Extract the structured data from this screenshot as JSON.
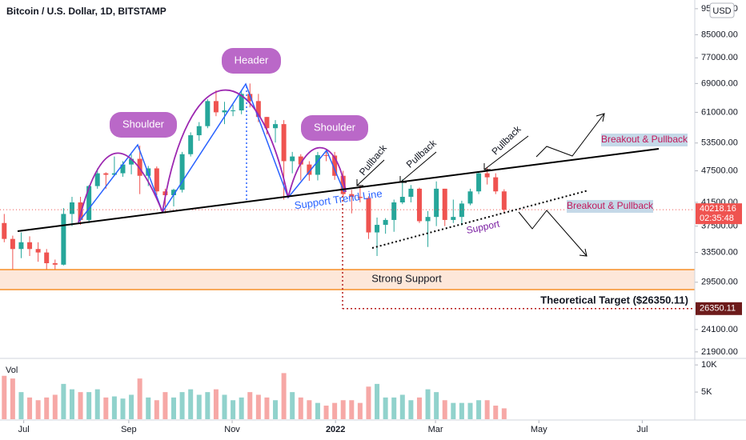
{
  "chart_data": {
    "type": "candlestick",
    "title": "Bitcoin / U.S. Dollar, 1D, BITSTAMP",
    "currency": "USD",
    "volume_label": "Vol",
    "log_scale": true,
    "up_color": "#26a69a",
    "down_color": "#ef5350",
    "open": [
      38000,
      35500,
      34000,
      35000,
      34000,
      33500,
      32000,
      31800,
      39500,
      41500,
      38500,
      44500,
      47000,
      46700,
      47000,
      48800,
      50000,
      46500,
      48000,
      43500,
      42800,
      43800,
      51000,
      55300,
      57500,
      64000,
      61000,
      61500,
      61500,
      66000,
      64000,
      59800,
      57000,
      58000,
      49500,
      50500,
      48800,
      46700,
      50800,
      50700,
      46500,
      43000,
      42500,
      42300,
      36500,
      37700,
      38500,
      41500,
      42500,
      44000,
      38300,
      39000,
      44000,
      38500,
      39000,
      41300,
      43500,
      47000,
      46200,
      43500
    ],
    "high": [
      39500,
      36000,
      36500,
      35900,
      35000,
      34000,
      32500,
      40500,
      42500,
      42500,
      44700,
      48000,
      47200,
      50500,
      49500,
      51000,
      52900,
      48500,
      48400,
      44000,
      44000,
      51500,
      56000,
      58500,
      64500,
      67000,
      63800,
      63000,
      67000,
      69000,
      66000,
      59800,
      59000,
      59000,
      51500,
      51000,
      49500,
      51500,
      52000,
      51500,
      47500,
      43800,
      44500,
      42600,
      38900,
      38800,
      42000,
      45800,
      44700,
      44200,
      40000,
      45400,
      44000,
      42000,
      41800,
      44000,
      47200,
      48200,
      47000,
      43900
    ],
    "low": [
      35000,
      29000,
      32700,
      33000,
      32200,
      31000,
      29300,
      31700,
      37500,
      37700,
      38000,
      44000,
      44000,
      46500,
      46300,
      46800,
      43000,
      44500,
      42800,
      39600,
      40800,
      43300,
      50500,
      54000,
      57000,
      60000,
      58000,
      60000,
      60500,
      62300,
      58500,
      55500,
      53600,
      42000,
      47000,
      45600,
      45500,
      45600,
      49500,
      45700,
      42500,
      39600,
      41500,
      35500,
      33000,
      36300,
      36600,
      41200,
      41500,
      38000,
      34300,
      37500,
      37500,
      38000,
      37600,
      41000,
      43000,
      44800,
      43000,
      39600
    ],
    "close": [
      35500,
      34000,
      35000,
      34000,
      33500,
      32000,
      31800,
      39500,
      41500,
      38500,
      44500,
      47000,
      46700,
      47000,
      48800,
      50000,
      46500,
      48000,
      43500,
      42800,
      43800,
      51000,
      55300,
      57500,
      64000,
      61000,
      61500,
      61500,
      66000,
      64000,
      59800,
      57000,
      58000,
      49500,
      50500,
      48800,
      46700,
      50800,
      50700,
      46500,
      43000,
      42500,
      42300,
      36500,
      37700,
      38500,
      41500,
      42500,
      44000,
      38300,
      39000,
      44000,
      38500,
      39000,
      41300,
      43500,
      47000,
      46200,
      43500,
      40218.16
    ],
    "volume": [
      8000,
      7500,
      5000,
      4000,
      3500,
      4000,
      4500,
      6500,
      5500,
      5000,
      5000,
      5500,
      4000,
      4200,
      3800,
      4500,
      7500,
      4000,
      3500,
      5000,
      4000,
      5000,
      5500,
      4500,
      5000,
      5500,
      4500,
      3500,
      4000,
      5000,
      4500,
      4000,
      3500,
      8500,
      5000,
      4000,
      3500,
      3000,
      2500,
      3000,
      3500,
      3500,
      3000,
      6000,
      6500,
      4000,
      4000,
      4500,
      3500,
      4000,
      5500,
      5000,
      3500,
      3000,
      3000,
      3000,
      3500,
      3500,
      2500,
      2000
    ],
    "xlim": [
      0,
      82
    ],
    "xticks": [
      {
        "value": 2.8,
        "label": "Jul"
      },
      {
        "value": 15.2,
        "label": "Sep"
      },
      {
        "value": 27.4,
        "label": "Nov"
      },
      {
        "value": 39.6,
        "label": "2022"
      },
      {
        "value": 51.4,
        "label": "Mar"
      },
      {
        "value": 63.6,
        "label": "May"
      },
      {
        "value": 75.8,
        "label": "Jul"
      }
    ],
    "ylim": [
      21300,
      98600
    ],
    "yticks": [
      {
        "value": 95000,
        "label": "95000.00"
      },
      {
        "value": 85000,
        "label": "85000.00"
      },
      {
        "value": 77000,
        "label": "77000.00"
      },
      {
        "value": 69000,
        "label": "69000.00"
      },
      {
        "value": 61000,
        "label": "61000.00"
      },
      {
        "value": 53500,
        "label": "53500.00"
      },
      {
        "value": 47500,
        "label": "47500.00"
      },
      {
        "value": 41500,
        "label": "41500.00"
      },
      {
        "value": 37500,
        "label": "37500.00"
      },
      {
        "value": 33500,
        "label": "33500.00"
      },
      {
        "value": 29500,
        "label": "29500.00"
      },
      {
        "value": 24100,
        "label": "24100.00"
      },
      {
        "value": 21900,
        "label": "21900.00"
      }
    ],
    "vol_ylim": [
      0,
      11200
    ],
    "vol_yticks": [
      {
        "value": 10000,
        "label": "10K"
      },
      {
        "value": 5000,
        "label": "5K"
      }
    ],
    "last_price": 40218.16,
    "countdown": "02:35:48",
    "target": 26350.11,
    "annotations": [
      "Shoulder",
      "Header",
      "Shoulder",
      "Pullback",
      "Pullback",
      "Pullback",
      "Support Trend Line",
      "Support",
      "Breakout & Pullback",
      "Breakout & Pullback",
      "Strong Support",
      "Theoretical Target ($26350.11)"
    ]
  }
}
